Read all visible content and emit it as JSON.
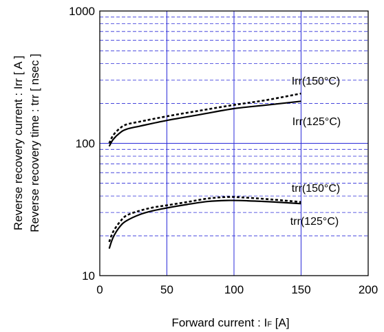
{
  "chart_data": {
    "type": "line",
    "title": "",
    "xlabel": "Forward current : IF [A]",
    "xlabel_parts": {
      "pre": "Forward current : I",
      "sub": "F",
      "post": " [A]"
    },
    "ylabel": [
      "Reverse recovery current : Irr [ A ]",
      "Reverse recovery time : trr [ nsec ]"
    ],
    "xlim": [
      0,
      200
    ],
    "ylim": [
      10,
      1000
    ],
    "yscale": "log",
    "x_ticks": [
      0,
      50,
      100,
      150,
      200
    ],
    "x_tick_labels": [
      "0",
      "50",
      "100",
      "150",
      "200"
    ],
    "y_ticks": [
      10,
      100,
      1000
    ],
    "y_tick_labels": [
      "10",
      "100",
      "1000"
    ],
    "grid": {
      "major": true,
      "minor_y": true
    },
    "colors": {
      "grid": "#2a2ad8",
      "line": "#000000",
      "axis": "#000000"
    },
    "series": [
      {
        "name": "Irr(150°C)",
        "style": "dashed",
        "x": [
          7,
          10,
          15,
          20,
          30,
          50,
          75,
          100,
          125,
          150
        ],
        "y": [
          100,
          115,
          130,
          139,
          146,
          160,
          177,
          195,
          213,
          238
        ]
      },
      {
        "name": "Irr(125°C)",
        "style": "solid",
        "x": [
          7,
          10,
          15,
          20,
          30,
          50,
          75,
          100,
          125,
          150
        ],
        "y": [
          95,
          107,
          120,
          128,
          135,
          149,
          165,
          183,
          195,
          208
        ]
      },
      {
        "name": "trr(150°C)",
        "style": "dashed",
        "x": [
          7,
          10,
          15,
          20,
          30,
          40,
          50,
          65,
          80,
          95,
          110,
          130,
          150
        ],
        "y": [
          18,
          21.5,
          25.5,
          28.5,
          31,
          32.8,
          34,
          36,
          38.2,
          39.3,
          38.8,
          37.5,
          36
        ]
      },
      {
        "name": "trr(125°C)",
        "style": "solid",
        "x": [
          7,
          10,
          15,
          20,
          30,
          40,
          50,
          65,
          80,
          95,
          110,
          130,
          150
        ],
        "y": [
          16,
          19.5,
          23.5,
          26,
          29,
          31,
          32.5,
          34.5,
          36.3,
          37,
          36.8,
          36,
          35
        ]
      }
    ]
  }
}
